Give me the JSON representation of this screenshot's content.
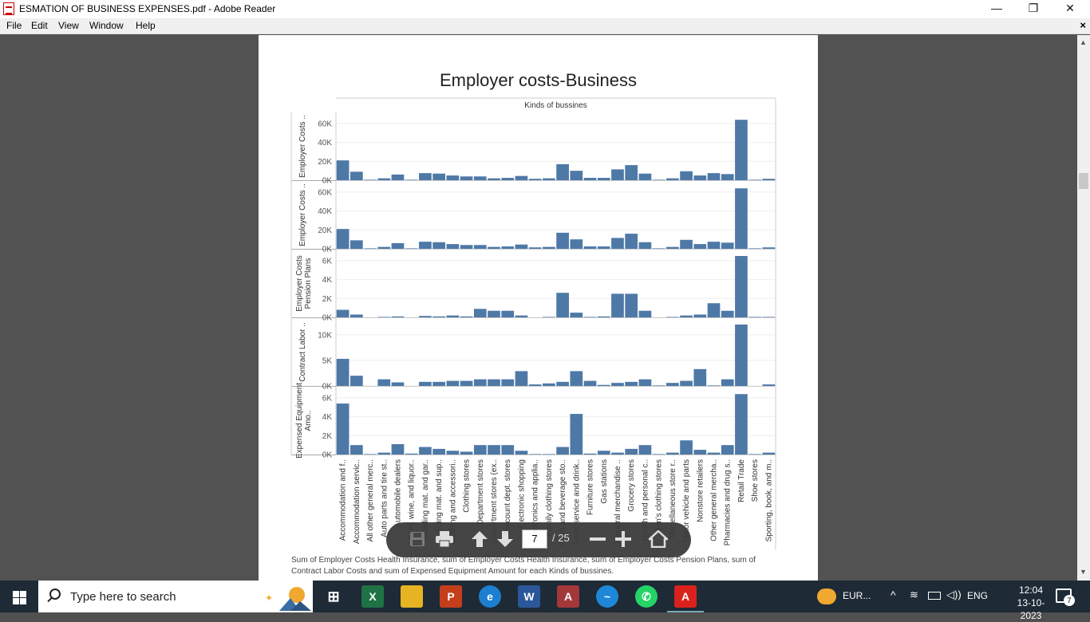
{
  "window": {
    "title": "ESMATION OF BUSINESS EXPENSES.pdf - Adobe Reader",
    "minimize": "—",
    "restore": "❐",
    "close": "✕"
  },
  "menu": {
    "items": [
      "File",
      "Edit",
      "View",
      "Window",
      "Help"
    ],
    "close_doc": "×"
  },
  "document": {
    "chart_title": "Employer costs-Business",
    "caption": "Sum of Employer Costs Health Insurance, sum of Employer Costs Health Insurance, sum of Employer Costs Pension Plans, sum of Contract Labor Costs and sum of Expensed Equipment Amount for each Kinds of bussines."
  },
  "chart_data": {
    "type": "bar",
    "header": "Kinds of bussines",
    "categories": [
      "Accommodation and f..",
      "Accommodation servic..",
      "All other general merc..",
      "Auto parts and tire st..",
      "Automobile dealers",
      "Beer, wine, and liquor..",
      "Building mat. and gar..",
      "Building mat. and sup..",
      "Clothing and accessori..",
      "Clothing stores",
      "Department stores",
      "Department stores (ex..",
      "Discount dept. stores",
      "Electronic shopping",
      "Electronics and applia..",
      "Family clothing stores",
      "Food and beverage sto..",
      "Food service and drink..",
      "Furniture stores",
      "Gas stations",
      "General merchandise ..",
      "Grocery stores",
      "Health and personal c..",
      "Men's clothing stores",
      "Miscellaneous store r..",
      "Motor vehicle and parts",
      "Nonstore retailers",
      "Other general mercha..",
      "Pharmacies and drug s..",
      "Retail Trade",
      "Shoe stores",
      "Sporting, book, and m.."
    ],
    "series": [
      {
        "name": "Employer Costs ..",
        "ticks": [
          "60K",
          "40K",
          "20K",
          "0K"
        ],
        "tick_values": [
          60000,
          40000,
          20000,
          0
        ],
        "ylim": [
          0,
          65000
        ],
        "values": [
          21000,
          9000,
          500,
          2000,
          6000,
          500,
          7500,
          7000,
          5000,
          4000,
          4000,
          2000,
          2500,
          4500,
          1500,
          2000,
          17000,
          10000,
          2500,
          2500,
          11500,
          16000,
          7000,
          500,
          2000,
          9500,
          5000,
          7500,
          6500,
          64000,
          500,
          1500
        ]
      },
      {
        "name": "Employer Costs ..",
        "ticks": [
          "60K",
          "40K",
          "20K",
          "0K"
        ],
        "tick_values": [
          60000,
          40000,
          20000,
          0
        ],
        "ylim": [
          0,
          65000
        ],
        "values": [
          21000,
          9000,
          500,
          2000,
          6000,
          500,
          7500,
          7000,
          5000,
          4000,
          4000,
          2000,
          2500,
          4500,
          1500,
          2000,
          17000,
          10000,
          2500,
          2500,
          11500,
          16000,
          7000,
          500,
          2000,
          9500,
          5000,
          7500,
          6500,
          64000,
          500,
          1500
        ]
      },
      {
        "name": "Employer Costs Pension Plans",
        "ticks": [
          "6K",
          "4K",
          "2K",
          "0K"
        ],
        "tick_values": [
          6000,
          4000,
          2000,
          0
        ],
        "ylim": [
          0,
          6500
        ],
        "values": [
          800,
          300,
          0,
          50,
          100,
          0,
          150,
          100,
          200,
          100,
          900,
          700,
          700,
          200,
          0,
          50,
          2600,
          500,
          50,
          100,
          2500,
          2500,
          700,
          0,
          50,
          200,
          300,
          1500,
          700,
          6500,
          50,
          50
        ]
      },
      {
        "name": "Contract Labor ..",
        "ticks": [
          "10K",
          "5K",
          "0K"
        ],
        "tick_values": [
          10000,
          5000,
          0
        ],
        "ylim": [
          0,
          12000
        ],
        "values": [
          5300,
          2000,
          0,
          1300,
          700,
          0,
          800,
          800,
          1000,
          1000,
          1300,
          1300,
          1300,
          2900,
          300,
          500,
          800,
          2900,
          1000,
          200,
          600,
          800,
          1300,
          100,
          600,
          1000,
          3300,
          100,
          1300,
          12000,
          0,
          300
        ]
      },
      {
        "name": "Expensed Equipment Amo..",
        "ticks": [
          "6K",
          "4K",
          "2K",
          "0K"
        ],
        "tick_values": [
          6000,
          4000,
          2000,
          0
        ],
        "ylim": [
          0,
          6500
        ],
        "values": [
          5400,
          1000,
          50,
          200,
          1100,
          100,
          800,
          600,
          400,
          300,
          1000,
          1000,
          1000,
          400,
          50,
          50,
          800,
          4300,
          100,
          400,
          200,
          600,
          1000,
          50,
          200,
          1500,
          500,
          200,
          1000,
          6400,
          50,
          200
        ]
      }
    ],
    "bar_color": "#4e79a7",
    "grid": true
  },
  "toolbar": {
    "current_page": "7",
    "total_pages": "/ 25"
  },
  "taskbar": {
    "search_placeholder": "Type here to search",
    "weather_text": "EUR...",
    "language": "ENG",
    "time": "12:04",
    "date": "13-10-2023",
    "notifications": "7"
  }
}
